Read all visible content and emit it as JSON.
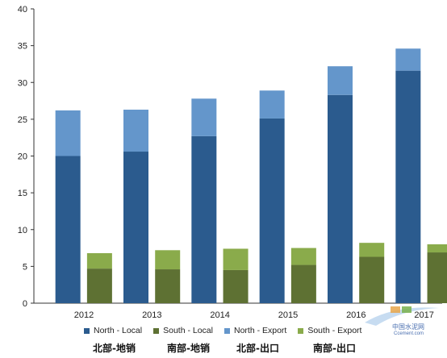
{
  "chart_data": {
    "type": "bar",
    "stacked": true,
    "categories": [
      "2012",
      "2013",
      "2014",
      "2015",
      "2016",
      "2017"
    ],
    "ylim": [
      0,
      40
    ],
    "yticks": [
      "0",
      "5",
      "10",
      "15",
      "20",
      "25",
      "30",
      "35",
      "40"
    ],
    "grid": false,
    "legend_position": "bottom",
    "groups": [
      {
        "name": "North",
        "series": [
          {
            "name": "North - Local",
            "color": "#2b5b8e",
            "values": [
              20.0,
              20.6,
              22.7,
              25.1,
              28.3,
              31.6
            ]
          },
          {
            "name": "North - Export",
            "color": "#6496cb",
            "values": [
              6.2,
              5.7,
              5.1,
              3.8,
              3.9,
              3.0
            ]
          }
        ]
      },
      {
        "name": "South",
        "series": [
          {
            "name": "South - Local",
            "color": "#5e7133",
            "values": [
              4.7,
              4.6,
              4.5,
              5.2,
              6.3,
              6.9
            ]
          },
          {
            "name": "South - Export",
            "color": "#8aab4b",
            "values": [
              2.1,
              2.6,
              2.9,
              2.3,
              1.9,
              1.1
            ]
          }
        ]
      }
    ]
  },
  "legend": [
    {
      "label": "North - Local",
      "color": "#2b5b8e"
    },
    {
      "label": "South - Local",
      "color": "#5e7133"
    },
    {
      "label": "North - Export",
      "color": "#6496cb"
    },
    {
      "label": "South - Export",
      "color": "#8aab4b"
    }
  ],
  "chinese_labels": [
    "北部-地销",
    "南部-地销",
    "北部-出口",
    "南部-出口"
  ],
  "watermark": {
    "text": "中国水泥网",
    "subtext": "Ccement.com"
  }
}
